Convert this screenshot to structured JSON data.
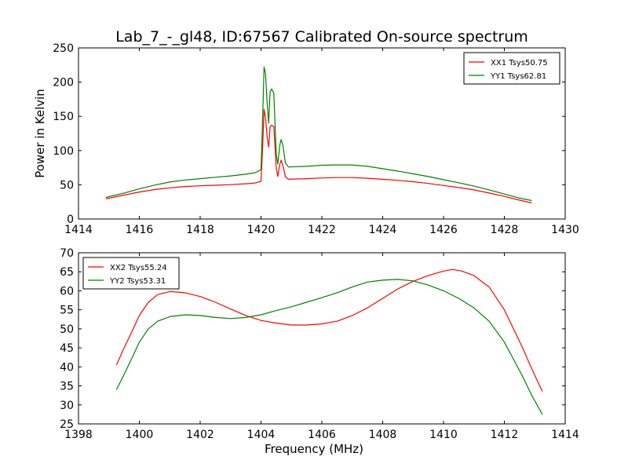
{
  "title": "Lab_7_-_gl48, ID:67567 Calibrated On-source spectrum",
  "chart_data": [
    {
      "type": "line",
      "name": "top-panel",
      "xlabel": "",
      "ylabel": "Power in Kelvin",
      "xlim": [
        1414,
        1430
      ],
      "ylim": [
        0,
        250
      ],
      "xticks": [
        1414,
        1416,
        1418,
        1420,
        1422,
        1424,
        1426,
        1428,
        1430
      ],
      "yticks": [
        0,
        50,
        100,
        150,
        200,
        250
      ],
      "legend_position": "top-right",
      "grid": false,
      "series": [
        {
          "name": "XX1 Tsys50.75",
          "color": "#ff0000",
          "points": [
            [
              1414.9,
              29.5
            ],
            [
              1415.5,
              35
            ],
            [
              1416.0,
              39.5
            ],
            [
              1416.5,
              43
            ],
            [
              1417.0,
              45.5
            ],
            [
              1417.5,
              47.5
            ],
            [
              1418.0,
              48.5
            ],
            [
              1418.5,
              49.3
            ],
            [
              1419.0,
              50.2
            ],
            [
              1419.5,
              51.5
            ],
            [
              1419.8,
              52.5
            ],
            [
              1420.0,
              55
            ],
            [
              1420.05,
              100
            ],
            [
              1420.1,
              160
            ],
            [
              1420.15,
              148
            ],
            [
              1420.2,
              120
            ],
            [
              1420.25,
              105
            ],
            [
              1420.3,
              135
            ],
            [
              1420.35,
              137
            ],
            [
              1420.42,
              135
            ],
            [
              1420.5,
              75
            ],
            [
              1420.55,
              62
            ],
            [
              1420.62,
              80
            ],
            [
              1420.66,
              86
            ],
            [
              1420.72,
              78
            ],
            [
              1420.8,
              62
            ],
            [
              1420.9,
              58
            ],
            [
              1421.5,
              59
            ],
            [
              1422.0,
              60
            ],
            [
              1422.5,
              60.5
            ],
            [
              1423.0,
              60.5
            ],
            [
              1423.5,
              59.5
            ],
            [
              1424.0,
              58
            ],
            [
              1424.5,
              56.5
            ],
            [
              1425.0,
              54.5
            ],
            [
              1425.5,
              52
            ],
            [
              1426.0,
              49
            ],
            [
              1426.5,
              46
            ],
            [
              1427.0,
              42.5
            ],
            [
              1427.5,
              38
            ],
            [
              1428.0,
              33
            ],
            [
              1428.5,
              27.5
            ],
            [
              1428.9,
              23.5
            ]
          ]
        },
        {
          "name": "YY1 Tsys62.81",
          "color": "#008000",
          "points": [
            [
              1414.9,
              31.5
            ],
            [
              1415.5,
              38
            ],
            [
              1416.0,
              44
            ],
            [
              1416.5,
              49.5
            ],
            [
              1417.0,
              54
            ],
            [
              1417.5,
              57
            ],
            [
              1418.0,
              59
            ],
            [
              1418.5,
              61
            ],
            [
              1419.0,
              63
            ],
            [
              1419.5,
              65.5
            ],
            [
              1419.8,
              67.5
            ],
            [
              1420.0,
              72
            ],
            [
              1420.05,
              140
            ],
            [
              1420.1,
              222
            ],
            [
              1420.15,
              212
            ],
            [
              1420.2,
              170
            ],
            [
              1420.25,
              140
            ],
            [
              1420.3,
              186
            ],
            [
              1420.35,
              190
            ],
            [
              1420.42,
              184
            ],
            [
              1420.5,
              95
            ],
            [
              1420.55,
              80
            ],
            [
              1420.62,
              108
            ],
            [
              1420.66,
              116
            ],
            [
              1420.72,
              108
            ],
            [
              1420.8,
              82
            ],
            [
              1420.9,
              76
            ],
            [
              1421.5,
              77
            ],
            [
              1422.0,
              78.5
            ],
            [
              1422.5,
              79
            ],
            [
              1423.0,
              79
            ],
            [
              1423.5,
              77
            ],
            [
              1424.0,
              73.5
            ],
            [
              1424.5,
              70
            ],
            [
              1425.0,
              66
            ],
            [
              1425.5,
              62
            ],
            [
              1426.0,
              57.5
            ],
            [
              1426.5,
              53
            ],
            [
              1427.0,
              48
            ],
            [
              1427.5,
              42.5
            ],
            [
              1428.0,
              36.5
            ],
            [
              1428.5,
              30.5
            ],
            [
              1428.9,
              27
            ]
          ]
        }
      ]
    },
    {
      "type": "line",
      "name": "bottom-panel",
      "xlabel": "Frequency (MHz)",
      "ylabel": "",
      "xlim": [
        1398,
        1414
      ],
      "ylim": [
        25,
        70
      ],
      "xticks": [
        1398,
        1400,
        1402,
        1404,
        1406,
        1408,
        1410,
        1412,
        1414
      ],
      "yticks": [
        25,
        30,
        35,
        40,
        45,
        50,
        55,
        60,
        65,
        70
      ],
      "legend_position": "top-left",
      "grid": false,
      "series": [
        {
          "name": "XX2 Tsys55.24",
          "color": "#ff0000",
          "points": [
            [
              1399.25,
              40.5
            ],
            [
              1399.5,
              45
            ],
            [
              1399.8,
              50
            ],
            [
              1400.0,
              53.5
            ],
            [
              1400.3,
              57
            ],
            [
              1400.6,
              59
            ],
            [
              1401.0,
              59.8
            ],
            [
              1401.5,
              59.5
            ],
            [
              1402.0,
              58.5
            ],
            [
              1402.5,
              57
            ],
            [
              1403.0,
              55.2
            ],
            [
              1403.5,
              53.5
            ],
            [
              1404.0,
              52.2
            ],
            [
              1404.5,
              51.5
            ],
            [
              1405.0,
              51
            ],
            [
              1405.5,
              51
            ],
            [
              1406.0,
              51.3
            ],
            [
              1406.5,
              52
            ],
            [
              1407.0,
              53.5
            ],
            [
              1407.5,
              55.5
            ],
            [
              1408.0,
              58
            ],
            [
              1408.5,
              60.5
            ],
            [
              1409.0,
              62.5
            ],
            [
              1409.5,
              64
            ],
            [
              1410.0,
              65.2
            ],
            [
              1410.3,
              65.6
            ],
            [
              1410.6,
              65.2
            ],
            [
              1411.0,
              64
            ],
            [
              1411.5,
              61
            ],
            [
              1412.0,
              55
            ],
            [
              1412.3,
              50
            ],
            [
              1412.6,
              45
            ],
            [
              1412.9,
              39.5
            ],
            [
              1413.25,
              33.5
            ]
          ]
        },
        {
          "name": "YY2 Tsys53.31",
          "color": "#008000",
          "points": [
            [
              1399.25,
              34
            ],
            [
              1399.5,
              38
            ],
            [
              1399.8,
              43
            ],
            [
              1400.0,
              46.5
            ],
            [
              1400.3,
              50
            ],
            [
              1400.6,
              52
            ],
            [
              1401.0,
              53.2
            ],
            [
              1401.5,
              53.7
            ],
            [
              1402.0,
              53.5
            ],
            [
              1402.5,
              53
            ],
            [
              1403.0,
              52.7
            ],
            [
              1403.5,
              53
            ],
            [
              1404.0,
              53.7
            ],
            [
              1404.5,
              54.8
            ],
            [
              1405.0,
              55.8
            ],
            [
              1405.5,
              57
            ],
            [
              1406.0,
              58.2
            ],
            [
              1406.5,
              59.5
            ],
            [
              1407.0,
              61
            ],
            [
              1407.5,
              62.3
            ],
            [
              1408.0,
              62.8
            ],
            [
              1408.5,
              63
            ],
            [
              1409.0,
              62.6
            ],
            [
              1409.5,
              61.5
            ],
            [
              1410.0,
              60
            ],
            [
              1410.5,
              58
            ],
            [
              1411.0,
              55.5
            ],
            [
              1411.5,
              52
            ],
            [
              1412.0,
              46.5
            ],
            [
              1412.3,
              42
            ],
            [
              1412.6,
              37.5
            ],
            [
              1412.9,
              32.5
            ],
            [
              1413.25,
              27.5
            ]
          ]
        }
      ]
    }
  ]
}
